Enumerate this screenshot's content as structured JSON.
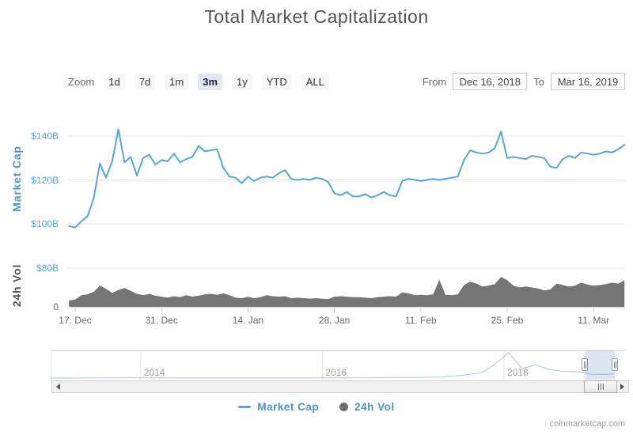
{
  "title": "Total Market Capitalization",
  "controls": {
    "zoom_label": "Zoom",
    "ranges": [
      {
        "label": "1d",
        "selected": false
      },
      {
        "label": "7d",
        "selected": false
      },
      {
        "label": "1m",
        "selected": false
      },
      {
        "label": "3m",
        "selected": true
      },
      {
        "label": "1y",
        "selected": false
      },
      {
        "label": "YTD",
        "selected": false
      },
      {
        "label": "ALL",
        "selected": false
      }
    ],
    "from_label": "From",
    "from_value": "Dec 16, 2018",
    "to_label": "To",
    "to_value": "Mar 16, 2019"
  },
  "chart_data": {
    "type": "line",
    "title": "Total Market Capitalization",
    "x_axis": {
      "start_date": "2018-12-16",
      "end_date": "2019-03-16",
      "interval": "1 day"
    },
    "x_ticks": [
      {
        "label": "17. Dec",
        "day": 1
      },
      {
        "label": "31. Dec",
        "day": 15
      },
      {
        "label": "14. Jan",
        "day": 29
      },
      {
        "label": "28. Jan",
        "day": 43
      },
      {
        "label": "11. Feb",
        "day": 57
      },
      {
        "label": "25. Feb",
        "day": 71
      },
      {
        "label": "11. Mar",
        "day": 85
      }
    ],
    "market_cap": {
      "name": "Market Cap",
      "type": "line",
      "color": "#54a5da",
      "axis_title": "Market Cap",
      "axis_title_color": "#4a9ac9",
      "unit": "USD billions",
      "ylim": [
        95,
        148
      ],
      "y_ticks": [
        {
          "label": "$140B",
          "value": 140
        },
        {
          "label": "$120B",
          "value": 120
        },
        {
          "label": "$100B",
          "value": 100
        }
      ],
      "values": [
        99.0,
        98.3,
        101.2,
        103.5,
        111.5,
        127.5,
        121.0,
        128.5,
        143.0,
        128.0,
        130.5,
        122.0,
        130.0,
        131.5,
        127.0,
        129.0,
        128.5,
        132.0,
        128.0,
        129.5,
        130.5,
        135.5,
        133.0,
        133.5,
        134.0,
        125.5,
        121.5,
        121.0,
        118.5,
        121.5,
        119.5,
        121.0,
        121.5,
        121.0,
        123.0,
        124.5,
        120.5,
        120.0,
        120.5,
        120.0,
        121.0,
        120.5,
        119.0,
        114.0,
        113.0,
        114.5,
        112.5,
        112.5,
        113.5,
        112.0,
        113.0,
        114.5,
        113.0,
        112.5,
        119.5,
        120.5,
        120.0,
        119.5,
        120.0,
        120.5,
        120.0,
        120.5,
        121.0,
        121.5,
        129.0,
        133.5,
        132.5,
        132.0,
        132.5,
        134.5,
        142.0,
        130.0,
        130.5,
        130.0,
        129.5,
        131.0,
        130.5,
        130.0,
        126.0,
        125.5,
        129.5,
        131.0,
        130.0,
        132.5,
        132.0,
        131.5,
        132.0,
        133.0,
        132.5,
        134.0,
        136.0
      ]
    },
    "volume": {
      "name": "24h Vol",
      "type": "area",
      "color": "#757575",
      "axis_title": "24h Vol",
      "axis_title_color": "#555555",
      "unit": "USD billions",
      "ylim": [
        0,
        80
      ],
      "y_ticks": [
        {
          "label": "$80B",
          "value": 80
        },
        {
          "label": "0",
          "value": 0
        }
      ],
      "values": [
        13,
        15,
        24,
        26,
        31,
        44,
        37,
        29,
        35,
        39,
        33,
        27,
        24,
        27,
        23,
        21,
        19,
        22,
        20,
        24,
        21,
        23,
        26,
        27,
        25,
        28,
        24,
        19,
        18,
        21,
        18,
        20,
        24,
        22,
        21,
        22,
        18,
        19,
        18,
        17,
        18,
        17,
        16,
        21,
        22,
        21,
        20,
        20,
        19,
        18,
        20,
        21,
        22,
        21,
        30,
        28,
        24,
        25,
        24,
        26,
        56,
        25,
        24,
        26,
        45,
        52,
        48,
        42,
        44,
        47,
        62,
        55,
        44,
        40,
        42,
        40,
        38,
        34,
        36,
        48,
        45,
        42,
        44,
        50,
        46,
        44,
        45,
        47,
        50,
        48,
        55
      ]
    },
    "navigator": {
      "range_years": [
        2013.0,
        2019.33
      ],
      "selected_range_years": [
        2018.89,
        2019.22
      ],
      "year_ticks": [
        {
          "label": "2014",
          "year": 2014
        },
        {
          "label": "2016",
          "year": 2016
        },
        {
          "label": "2018",
          "year": 2018
        }
      ],
      "series_years": [
        2013.0,
        2013.5,
        2013.9,
        2014.0,
        2014.3,
        2014.6,
        2015.0,
        2015.4,
        2015.8,
        2016.2,
        2016.6,
        2017.0,
        2017.3,
        2017.55,
        2017.75,
        2017.9,
        2018.05,
        2018.2,
        2018.35,
        2018.5,
        2018.65,
        2018.8,
        2018.95,
        2019.1,
        2019.21
      ],
      "series_values": [
        1,
        1.4,
        12,
        10,
        8,
        5,
        4,
        4.5,
        4,
        8,
        12,
        18,
        35,
        95,
        170,
        450,
        830,
        310,
        430,
        280,
        220,
        210,
        130,
        120,
        135
      ]
    }
  },
  "legend": [
    {
      "label": "Market Cap",
      "marker": "line",
      "color": "#54a5da",
      "text_color": "#4b93c4"
    },
    {
      "label": "24h Vol",
      "marker": "circle",
      "color": "#6e6e6e",
      "text_color": "#4b93c4"
    }
  ],
  "colors": {
    "axis_label_blue": "#55a8d8",
    "axis_label_gray": "#666666",
    "gridline": "#e6e6e6",
    "selection_fill": "#6685c2"
  },
  "watermark": "coinmarketcap.com"
}
